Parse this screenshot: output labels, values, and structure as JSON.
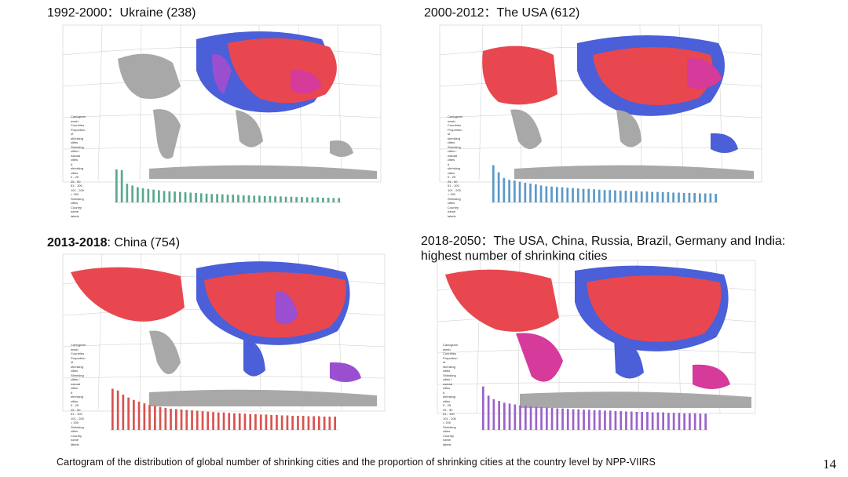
{
  "panels": [
    {
      "period": "1992-2000",
      "separator": "：",
      "title": "Ukraine (238)",
      "bar_color": "#5aa890",
      "bar_heights": [
        0.98,
        0.96,
        0.55,
        0.5,
        0.45,
        0.42,
        0.4,
        0.38,
        0.36,
        0.34,
        0.33,
        0.32,
        0.31,
        0.3,
        0.29,
        0.28,
        0.27,
        0.26,
        0.25,
        0.25,
        0.24,
        0.23,
        0.23,
        0.22,
        0.21,
        0.21,
        0.2,
        0.2,
        0.19,
        0.19,
        0.18,
        0.18,
        0.17,
        0.17,
        0.16,
        0.16,
        0.15,
        0.15,
        0.15,
        0.14,
        0.14,
        0.13,
        0.13
      ]
    },
    {
      "period": "2000-2012",
      "separator": "：",
      "title": "The USA (612)",
      "bar_color": "#5b9ac7",
      "bar_heights": [
        0.99,
        0.8,
        0.65,
        0.6,
        0.58,
        0.55,
        0.52,
        0.5,
        0.48,
        0.45,
        0.43,
        0.42,
        0.41,
        0.4,
        0.39,
        0.38,
        0.37,
        0.36,
        0.36,
        0.35,
        0.34,
        0.33,
        0.33,
        0.32,
        0.31,
        0.31,
        0.3,
        0.3,
        0.29,
        0.29,
        0.28,
        0.28,
        0.27,
        0.27,
        0.26,
        0.26,
        0.25,
        0.25,
        0.25,
        0.24,
        0.24,
        0.24,
        0.23
      ]
    },
    {
      "period": "2013-2018",
      "separator": ":",
      "title": "China (754)",
      "bar_color": "#d9534f",
      "bar_heights": [
        0.99,
        0.95,
        0.85,
        0.78,
        0.72,
        0.68,
        0.64,
        0.6,
        0.58,
        0.55,
        0.53,
        0.51,
        0.5,
        0.49,
        0.48,
        0.47,
        0.46,
        0.45,
        0.44,
        0.43,
        0.42,
        0.42,
        0.41,
        0.4,
        0.4,
        0.39,
        0.38,
        0.38,
        0.37,
        0.37,
        0.36,
        0.36,
        0.35,
        0.35,
        0.34,
        0.34,
        0.34,
        0.33,
        0.33,
        0.33,
        0.32,
        0.32,
        0.32
      ]
    },
    {
      "period": "2018-2050",
      "separator": "：",
      "title": "The USA, China, Russia, Brazil, Germany and India:",
      "title_line2": "highest number of shrinking cities",
      "bar_color": "#9b63c9",
      "bar_heights": [
        0.99,
        0.78,
        0.7,
        0.66,
        0.62,
        0.6,
        0.58,
        0.56,
        0.55,
        0.54,
        0.53,
        0.52,
        0.51,
        0.5,
        0.49,
        0.49,
        0.48,
        0.47,
        0.47,
        0.46,
        0.46,
        0.45,
        0.45,
        0.44,
        0.44,
        0.43,
        0.43,
        0.42,
        0.42,
        0.41,
        0.41,
        0.41,
        0.4,
        0.4,
        0.4,
        0.39,
        0.39,
        0.39,
        0.38,
        0.38,
        0.38,
        0.37,
        0.37
      ]
    }
  ],
  "legend": {
    "lines": [
      "Cartogram mesh",
      "Countries",
      "Proportion of shrinking cities",
      "Shrinking cities / natural cities",
      "shrinking cities",
      "nonshrinking cities",
      "# shrinking cities",
      "0 - 25",
      "25 - 50",
      "51 - 100",
      "101 - 200",
      "> 200",
      "Shrinking cities",
      "Country name labels",
      "the proportions"
    ],
    "swatch_colors": [
      "#6b6be0",
      "#b05fe0",
      "#d0409a",
      "#e0308a",
      "#e85060"
    ]
  },
  "colors": {
    "land_gray": "#a8a8a8",
    "red": "#e8474f",
    "blue": "#4a5fd8",
    "purple": "#9a4fd0",
    "magenta": "#d63a9a"
  },
  "caption": "Cartogram of the distribution of global number of shrinking cities and the proportion of shrinking cities at the country level by NPP-VIIRS",
  "page_number": "14"
}
